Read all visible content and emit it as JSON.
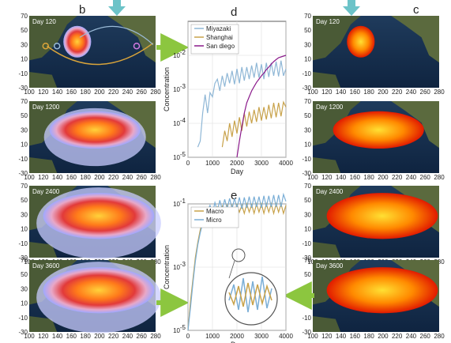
{
  "panels": {
    "b": {
      "label": "b",
      "maps": [
        {
          "day": "Day 120",
          "plume": "small",
          "cmap": "blue-white-red"
        },
        {
          "day": "Day 1200",
          "plume": "medium",
          "cmap": "blue-white-red"
        },
        {
          "day": "Day 2400",
          "plume": "large",
          "cmap": "blue-white-red"
        },
        {
          "day": "Day 3600",
          "plume": "large",
          "cmap": "blue-white-red"
        }
      ]
    },
    "c": {
      "label": "c",
      "maps": [
        {
          "day": "Day 120",
          "plume": "small",
          "cmap": "hot"
        },
        {
          "day": "Day 1200",
          "plume": "medium",
          "cmap": "hot"
        },
        {
          "day": "Day 2400",
          "plume": "large",
          "cmap": "hot"
        },
        {
          "day": "Day 3600",
          "plume": "large",
          "cmap": "hot"
        }
      ]
    },
    "map_axes": {
      "x_ticks": [
        "100",
        "120",
        "140",
        "160",
        "180",
        "200",
        "220",
        "240",
        "260",
        "280"
      ],
      "y_ticks": [
        "70",
        "50",
        "30",
        "10",
        "-10",
        "-30"
      ]
    }
  },
  "chart_data": [
    {
      "panel": "d",
      "type": "line",
      "title": "d",
      "xlabel": "Day",
      "ylabel": "Concentration",
      "yscale": "log",
      "xlim": [
        0,
        4000
      ],
      "ylim_exp": [
        -5,
        -1
      ],
      "x_ticks": [
        "0",
        "1000",
        "2000",
        "3000",
        "4000"
      ],
      "y_ticks": [
        {
          "base": "10",
          "exp": "-5"
        },
        {
          "base": "10",
          "exp": "-4"
        },
        {
          "base": "10",
          "exp": "-3"
        },
        {
          "base": "10",
          "exp": "-2"
        }
      ],
      "grid": true,
      "legend": "top-left",
      "series": [
        {
          "name": "Miyazaki",
          "color": "#8fb7d6",
          "x": [
            400,
            500,
            600,
            700,
            800,
            900,
            1000,
            1100,
            1200,
            1300,
            1400,
            1500,
            1600,
            1700,
            1800,
            1900,
            2000,
            2100,
            2200,
            2300,
            2400,
            2500,
            2600,
            2700,
            2800,
            2900,
            3000,
            3100,
            3200,
            3300,
            3400,
            3500,
            3600,
            3700,
            3800,
            3900,
            4000
          ],
          "y": [
            2e-05,
            3e-05,
            0.0002,
            0.0007,
            0.0002,
            0.0008,
            0.0006,
            0.0015,
            0.002,
            0.0009,
            0.0025,
            0.0012,
            0.003,
            0.0015,
            0.0035,
            0.0014,
            0.004,
            0.0015,
            0.0045,
            0.0018,
            0.0045,
            0.002,
            0.005,
            0.0022,
            0.006,
            0.0022,
            0.0055,
            0.002,
            0.006,
            0.0023,
            0.006,
            0.0025,
            0.0065,
            0.0024,
            0.007,
            0.0025,
            0.004
          ]
        },
        {
          "name": "Shanghai",
          "color": "#c8a24a",
          "x": [
            1400,
            1500,
            1600,
            1700,
            1800,
            1900,
            2000,
            2100,
            2200,
            2300,
            2400,
            2500,
            2600,
            2700,
            2800,
            2900,
            3000,
            3100,
            3200,
            3300,
            3400,
            3500,
            3600,
            3700,
            3800,
            3900,
            4000
          ],
          "y": [
            2e-05,
            6e-05,
            3e-05,
            0.0001,
            4e-05,
            0.00012,
            5e-05,
            0.00015,
            6e-05,
            0.0002,
            8e-05,
            0.00022,
            0.0001,
            0.00025,
            0.00011,
            0.0003,
            0.00012,
            0.0003,
            0.00013,
            0.00035,
            0.00014,
            0.0004,
            0.00015,
            0.0004,
            0.00016,
            0.00042,
            0.0003
          ]
        },
        {
          "name": "San diego",
          "color": "#8b1a8b",
          "x": [
            2000,
            2100,
            2200,
            2300,
            2400,
            2500,
            2600,
            2700,
            2800,
            2900,
            3000,
            3100,
            3200,
            3300,
            3400,
            3500,
            3600,
            3700,
            3800,
            3900,
            4000
          ],
          "y": [
            1e-05,
            3e-05,
            8e-05,
            0.0002,
            0.0004,
            0.0006,
            0.0009,
            0.0012,
            0.0016,
            0.002,
            0.0025,
            0.003,
            0.0038,
            0.0045,
            0.0055,
            0.0065,
            0.0075,
            0.0085,
            0.009,
            0.0095,
            0.01
          ]
        }
      ]
    },
    {
      "panel": "e",
      "type": "line",
      "title": "e",
      "xlabel": "Day",
      "ylabel": "Concentration",
      "yscale": "log",
      "xlim": [
        0,
        4000
      ],
      "ylim_exp": [
        -5,
        -1
      ],
      "x_ticks": [
        "0",
        "1000",
        "2000",
        "3000",
        "4000"
      ],
      "y_ticks": [
        {
          "base": "10",
          "exp": "-5"
        },
        {
          "base": "10",
          "exp": "-3"
        },
        {
          "base": "10",
          "exp": "-1"
        }
      ],
      "grid": true,
      "legend": "top-left",
      "series": [
        {
          "name": "Macro",
          "color": "#c8a24a",
          "x": [
            0,
            100,
            200,
            300,
            400,
            500,
            600,
            700,
            800,
            900,
            1000,
            1100,
            1200,
            1300,
            1400,
            1500,
            1600,
            1700,
            1800,
            1900,
            2000,
            2100,
            2200,
            2300,
            2400,
            2500,
            2600,
            2700,
            2800,
            2900,
            3000,
            3100,
            3200,
            3300,
            3400,
            3500,
            3600,
            3700,
            3800,
            3900,
            4000
          ],
          "y": [
            1e-05,
            8e-05,
            0.0004,
            0.002,
            0.006,
            0.015,
            0.03,
            0.045,
            0.06,
            0.04,
            0.07,
            0.045,
            0.08,
            0.05,
            0.085,
            0.05,
            0.09,
            0.055,
            0.09,
            0.05,
            0.095,
            0.055,
            0.09,
            0.05,
            0.1,
            0.055,
            0.095,
            0.05,
            0.1,
            0.055,
            0.1,
            0.05,
            0.1,
            0.055,
            0.1,
            0.05,
            0.1,
            0.055,
            0.1,
            0.05,
            0.09
          ]
        },
        {
          "name": "Micro",
          "color": "#7aaed6",
          "x": [
            0,
            100,
            200,
            300,
            400,
            500,
            600,
            700,
            800,
            900,
            1000,
            1100,
            1200,
            1300,
            1400,
            1500,
            1600,
            1700,
            1800,
            1900,
            2000,
            2100,
            2200,
            2300,
            2400,
            2500,
            2600,
            2700,
            2800,
            2900,
            3000,
            3100,
            3200,
            3300,
            3400,
            3500,
            3600,
            3700,
            3800,
            3900,
            4000
          ],
          "y": [
            1e-05,
            5e-05,
            0.0003,
            0.0015,
            0.005,
            0.012,
            0.025,
            0.04,
            0.06,
            0.09,
            0.05,
            0.11,
            0.06,
            0.13,
            0.065,
            0.14,
            0.07,
            0.15,
            0.07,
            0.15,
            0.075,
            0.16,
            0.07,
            0.16,
            0.075,
            0.17,
            0.075,
            0.17,
            0.08,
            0.17,
            0.075,
            0.18,
            0.08,
            0.18,
            0.08,
            0.19,
            0.08,
            0.19,
            0.08,
            0.2,
            0.12
          ]
        }
      ]
    }
  ]
}
